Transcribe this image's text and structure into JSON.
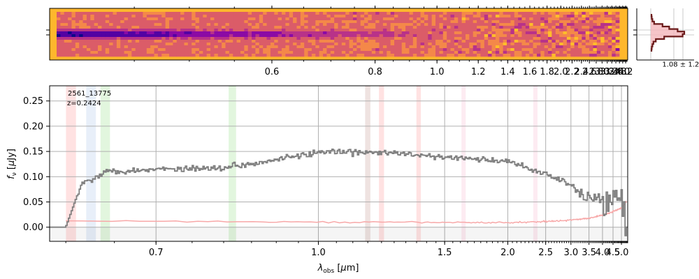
{
  "chart_data": [
    {
      "type": "heatmap",
      "panel": "2d-spectrum",
      "x_scale": "reciprocal",
      "xlim": [
        0.39,
        4.35
      ],
      "x_ticks": [
        "0.6",
        "0.8",
        "1.0",
        "1.2",
        "1.4",
        "1.6",
        "1.8",
        "2.0",
        "2.2",
        "2.4",
        "2.6",
        "2.8",
        "3.0",
        "3.2",
        "3.4",
        "3.6",
        "3.8",
        "4.0",
        "4.2"
      ],
      "x_tick_values": [
        0.6,
        0.8,
        1.0,
        1.2,
        1.4,
        1.6,
        1.8,
        2.0,
        2.2,
        2.4,
        2.6,
        2.8,
        3.0,
        3.2,
        3.4,
        3.6,
        3.8,
        4.0,
        4.2
      ],
      "colormap": "plasma",
      "background_color": "#feb72c",
      "trace_color": "#8b0aa5"
    },
    {
      "type": "line",
      "panel": "spatial-profile",
      "annotation": "1.08 ± 1.24",
      "line_color": "#6b1a1a",
      "fill_color": "#f4b6bb",
      "profile": [
        0.02,
        0.03,
        0.05,
        0.1,
        0.35,
        0.55,
        0.8,
        1.0,
        0.95,
        0.4,
        0.15,
        0.08,
        0.05,
        0.03,
        0.02
      ]
    },
    {
      "type": "line",
      "panel": "1d-spectrum",
      "x_scale": "reciprocal",
      "xlabel": "λobs [μm]",
      "ylabel": "fν [μJy]",
      "xlim": [
        0.585,
        5.45
      ],
      "ylim": [
        -0.028,
        0.28
      ],
      "x_ticks": [
        "0.7",
        "1.0",
        "1.5",
        "2.0",
        "2.5",
        "3.0",
        "3.5",
        "4.0",
        "4.5",
        "5.0"
      ],
      "x_tick_values": [
        0.7,
        1.0,
        1.5,
        2.0,
        2.5,
        3.0,
        3.5,
        4.0,
        4.5,
        5.0
      ],
      "y_ticks": [
        "0.00",
        "0.05",
        "0.10",
        "0.15",
        "0.20",
        "0.25"
      ],
      "y_tick_values": [
        0.0,
        0.05,
        0.1,
        0.15,
        0.2,
        0.25
      ],
      "grid": true,
      "annotation_id": "2561_13775",
      "annotation_z": "z=0.2424",
      "line_bands": [
        {
          "center": 0.605,
          "color": "#ff9896"
        },
        {
          "center": 0.625,
          "color": "#aec7e8"
        },
        {
          "center": 0.64,
          "color": "#98df8a"
        },
        {
          "center": 0.815,
          "color": "#98df8a"
        },
        {
          "center": 1.15,
          "color": "#c49c94"
        },
        {
          "center": 1.2,
          "color": "#ff9896"
        },
        {
          "center": 1.36,
          "color": "#ff9896"
        },
        {
          "center": 1.62,
          "color": "#f7b6d2"
        },
        {
          "center": 2.33,
          "color": "#f7b6d2"
        }
      ],
      "spectrum_color": "#7f7f7f",
      "error_color": "#f7a8a8",
      "spectrum_anchors": [
        {
          "x": 0.585,
          "y": 0.0
        },
        {
          "x": 0.6,
          "y": 0.0
        },
        {
          "x": 0.615,
          "y": 0.085
        },
        {
          "x": 0.64,
          "y": 0.11
        },
        {
          "x": 0.7,
          "y": 0.115
        },
        {
          "x": 0.8,
          "y": 0.118
        },
        {
          "x": 0.9,
          "y": 0.135
        },
        {
          "x": 1.0,
          "y": 0.148
        },
        {
          "x": 1.2,
          "y": 0.148
        },
        {
          "x": 1.5,
          "y": 0.138
        },
        {
          "x": 2.0,
          "y": 0.13
        },
        {
          "x": 2.5,
          "y": 0.105
        },
        {
          "x": 3.0,
          "y": 0.085
        },
        {
          "x": 3.4,
          "y": 0.06
        },
        {
          "x": 3.8,
          "y": 0.055
        },
        {
          "x": 4.2,
          "y": 0.05
        },
        {
          "x": 4.6,
          "y": 0.05
        },
        {
          "x": 5.0,
          "y": 0.045
        },
        {
          "x": 5.3,
          "y": 0.035
        },
        {
          "x": 5.45,
          "y": 0.0
        }
      ],
      "error_anchors": [
        {
          "x": 0.6,
          "y": 0.012
        },
        {
          "x": 1.0,
          "y": 0.01
        },
        {
          "x": 2.0,
          "y": 0.009
        },
        {
          "x": 3.0,
          "y": 0.014
        },
        {
          "x": 3.5,
          "y": 0.018
        },
        {
          "x": 4.0,
          "y": 0.024
        },
        {
          "x": 4.5,
          "y": 0.031
        },
        {
          "x": 5.0,
          "y": 0.038
        },
        {
          "x": 5.3,
          "y": 0.05
        }
      ]
    }
  ]
}
